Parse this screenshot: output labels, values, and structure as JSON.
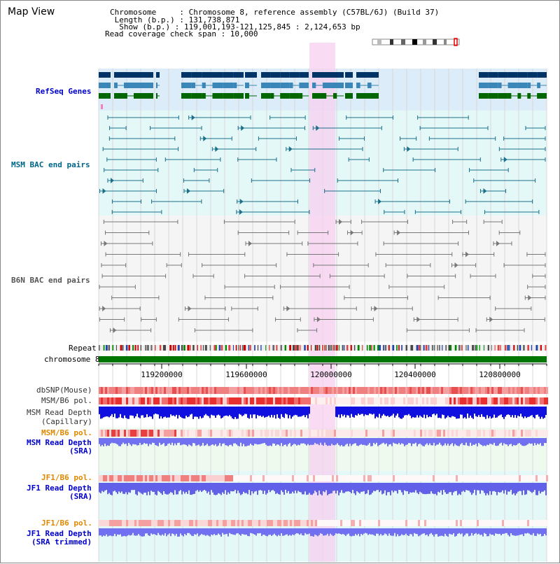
{
  "header": {
    "title": "Map View",
    "info_lines": [
      "Chromosome     : Chromosome 8, reference assembly (C57BL/6J) (Build 37)",
      " Length (b.p.) : 131,738,871",
      "  Show (b.p.) : 119,001,193-121,125,845 : 2,124,653 bp",
      "Read coverage check span : 10,000"
    ]
  },
  "tracks": {
    "refseq": "RefSeq Genes",
    "msm_bac": "MSM BAC end pairs",
    "b6n_bac": "B6N BAC end pairs",
    "repeat": "Repeat",
    "chromosome": "chromosome 8",
    "dbsnp": "dbSNP(Mouse)",
    "msm_b6_pol_1": "MSM/B6 pol.",
    "msm_read_depth_cap_1": "MSM Read Depth",
    "msm_read_depth_cap_2": "(Capillary)",
    "msm_b6_pol_2": "MSM/B6 pol.",
    "msm_read_depth_sra_1": "MSM Read Depth",
    "msm_read_depth_sra_2": "(SRA)",
    "jf1_b6_pol_1": "JF1/B6 pol.",
    "jf1_read_depth_sra_1": "JF1 Read Depth",
    "jf1_read_depth_sra_2": "(SRA)",
    "jf1_b6_pol_2": "JF1/B6 pol.",
    "jf1_read_depth_trim_1": "JF1 Read Depth",
    "jf1_read_depth_trim_2": "(SRA trimmed)"
  },
  "axis": {
    "ticks": [
      "119200000",
      "119600000",
      "120000000",
      "120400000",
      "120800000"
    ]
  },
  "colors": {
    "refseq_label": "#0000cc",
    "msm_label": "#006688",
    "b6n_label": "#555555",
    "pol_label": "#e08800",
    "depth_label": "#0000cc",
    "highlight": "#f7d0f0"
  }
}
